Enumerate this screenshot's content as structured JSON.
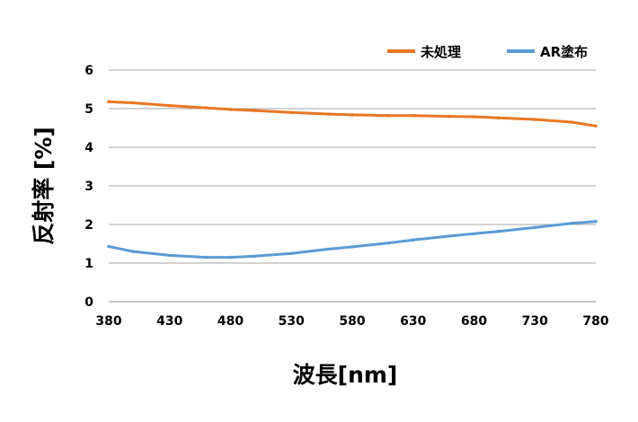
{
  "chart_data": {
    "type": "line",
    "title": "",
    "xlabel": "波長[nm]",
    "ylabel": "反射率 [%]",
    "xlim": [
      380,
      780
    ],
    "ylim": [
      0,
      6
    ],
    "x_ticks": [
      "380",
      "430",
      "480",
      "530",
      "580",
      "630",
      "680",
      "730",
      "780"
    ],
    "y_ticks": [
      "0",
      "1",
      "2",
      "3",
      "4",
      "5",
      "6"
    ],
    "grid": "horizontal",
    "legend_position": "top-right",
    "series": [
      {
        "name": "未処理",
        "color": "#e87722",
        "x": [
          380,
          400,
          430,
          460,
          480,
          500,
          530,
          560,
          580,
          610,
          630,
          660,
          680,
          700,
          730,
          760,
          780
        ],
        "y": [
          5.18,
          5.15,
          5.08,
          5.02,
          4.98,
          4.95,
          4.9,
          4.86,
          4.84,
          4.82,
          4.82,
          4.8,
          4.79,
          4.76,
          4.72,
          4.65,
          4.55
        ]
      },
      {
        "name": "AR塗布",
        "color": "#5b9bd5",
        "x": [
          380,
          400,
          430,
          460,
          480,
          500,
          530,
          560,
          580,
          610,
          630,
          660,
          680,
          700,
          730,
          760,
          780
        ],
        "y": [
          1.43,
          1.3,
          1.2,
          1.15,
          1.15,
          1.18,
          1.25,
          1.36,
          1.42,
          1.52,
          1.6,
          1.7,
          1.76,
          1.82,
          1.92,
          2.03,
          2.08
        ]
      }
    ]
  }
}
